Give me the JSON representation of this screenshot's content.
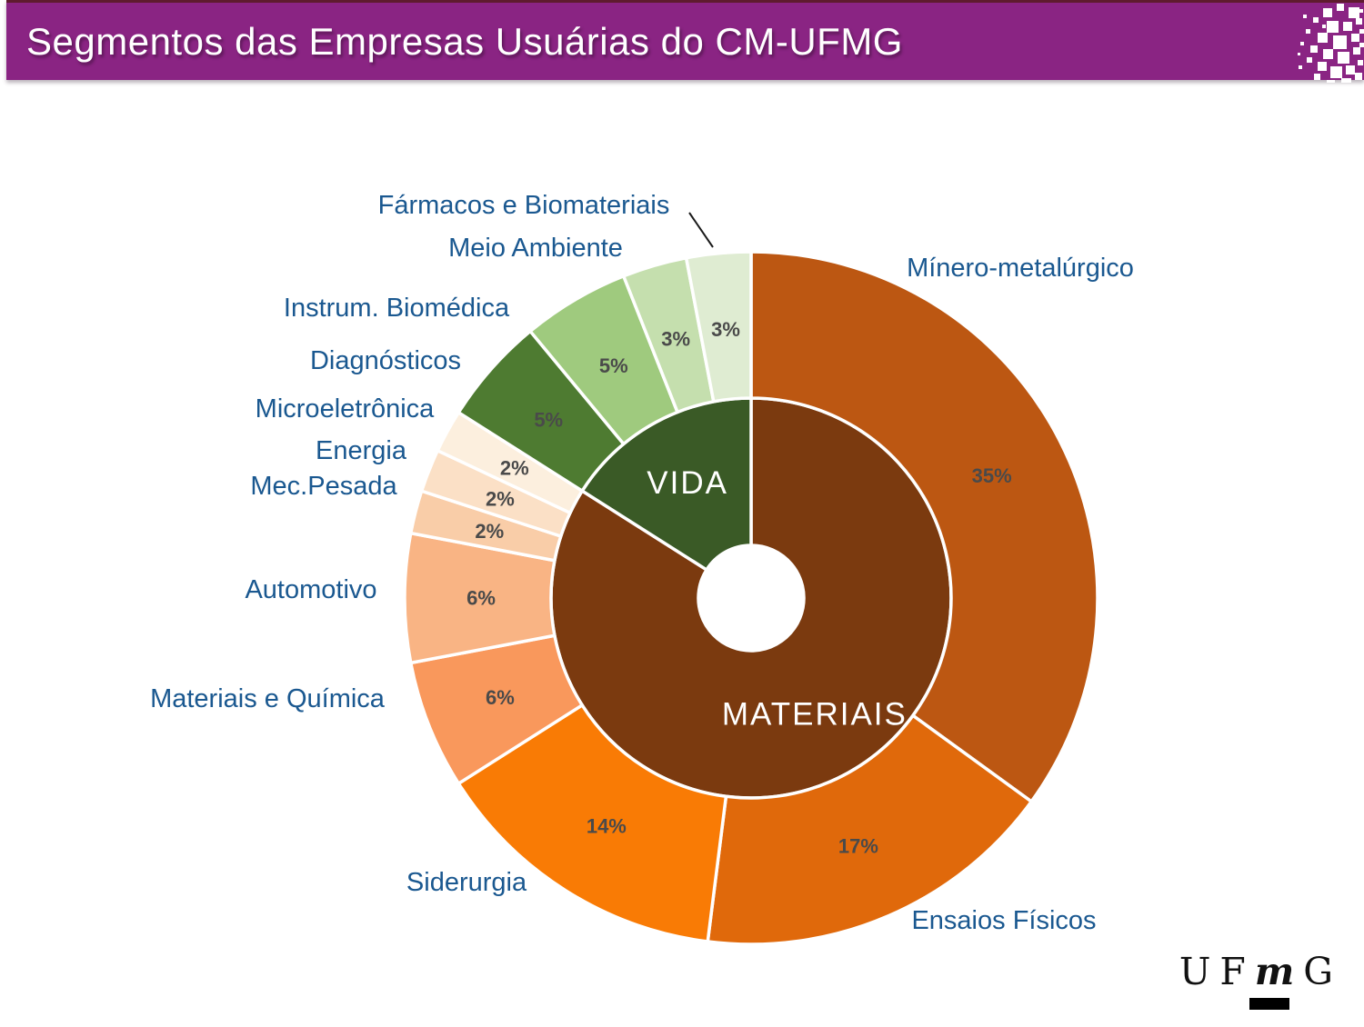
{
  "header": {
    "title": "Segmentos das Empresas Usuárias do CM-UFMG",
    "banner_color": "#8A2483",
    "title_color": "#FFFFFF"
  },
  "chart_data": {
    "type": "sunburst",
    "title": "Segmentos das Empresas Usuárias do CM-UFMG",
    "legend_position": "around-labels",
    "label_color": "#1A5890",
    "percent_label_color": "#4A4A4A",
    "inner_ring": [
      {
        "label": "MATERIAIS",
        "value": 84,
        "color": "#7B3A0F",
        "text_color": "#FFFFFF"
      },
      {
        "label": "VIDA",
        "value": 16,
        "color": "#3A5A26",
        "text_color": "#FFFFFF"
      }
    ],
    "outer_ring": [
      {
        "label": "Mínero-metalúrgico",
        "value": 35,
        "pct": "35%",
        "color": "#BC5712",
        "group": "MATERIAIS"
      },
      {
        "label": "Ensaios Físicos",
        "value": 17,
        "pct": "17%",
        "color": "#E0690B",
        "group": "MATERIAIS"
      },
      {
        "label": "Siderurgia",
        "value": 14,
        "pct": "14%",
        "color": "#F97B05",
        "group": "MATERIAIS"
      },
      {
        "label": "Materiais e Química",
        "value": 6,
        "pct": "6%",
        "color": "#F9985C",
        "group": "MATERIAIS"
      },
      {
        "label": "Automotivo",
        "value": 6,
        "pct": "6%",
        "color": "#F9B484",
        "group": "MATERIAIS"
      },
      {
        "label": "Mec.Pesada",
        "value": 2,
        "pct": "2%",
        "color": "#F9CDA8",
        "group": "MATERIAIS"
      },
      {
        "label": "Energia",
        "value": 2,
        "pct": "2%",
        "color": "#FBE0C6",
        "group": "MATERIAIS"
      },
      {
        "label": "Microeletrônica",
        "value": 2,
        "pct": "2%",
        "color": "#FCEFDE",
        "group": "MATERIAIS"
      },
      {
        "label": "Diagnósticos",
        "value": 5,
        "pct": "5%",
        "color": "#4E7B31",
        "group": "VIDA"
      },
      {
        "label": "Instrum. Biomédica",
        "value": 5,
        "pct": "5%",
        "color": "#9FCA7E",
        "group": "VIDA"
      },
      {
        "label": "Meio Ambiente",
        "value": 3,
        "pct": "3%",
        "color": "#C5DFAE",
        "group": "VIDA"
      },
      {
        "label": "Fármacos e Biomateriais",
        "value": 3,
        "pct": "3%",
        "color": "#DFECD2",
        "group": "VIDA"
      }
    ]
  },
  "footer_logo": {
    "l1": "U",
    "l2": "F",
    "l3": "m",
    "l4": "G"
  }
}
